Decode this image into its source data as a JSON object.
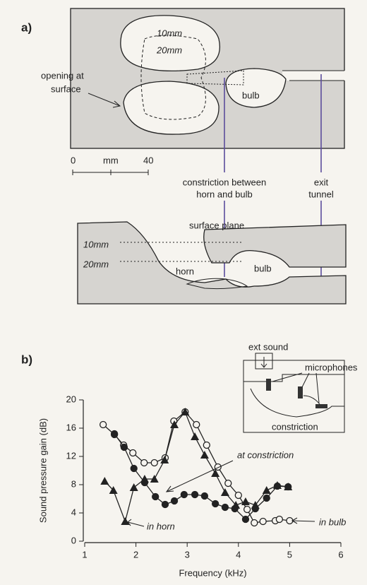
{
  "panel_a": {
    "label": "a)",
    "top_view": {
      "depth_10": "10mm",
      "depth_20": "20mm",
      "opening": [
        "opening at",
        "surface"
      ],
      "bulb": "bulb"
    },
    "scale_bar": {
      "start": "0",
      "unit": "mm",
      "end": "40"
    },
    "constriction": [
      "constriction between",
      "horn and bulb"
    ],
    "exit": [
      "exit",
      "tunnel"
    ],
    "section": {
      "surface_plane": "surface plane",
      "depth_10": "10mm",
      "depth_20": "20mm",
      "horn": "horn",
      "bulb": "bulb"
    }
  },
  "panel_b": {
    "label": "b)",
    "inset": {
      "ext_sound": "ext sound",
      "microphones": "microphones",
      "constriction": "constriction"
    }
  },
  "chart_data": {
    "type": "line",
    "x_label": "Frequency (kHz)",
    "y_label": "Sound pressure gain (dB)",
    "xlim": [
      1,
      6
    ],
    "xticks": [
      1,
      2,
      3,
      4,
      5,
      6
    ],
    "ylim": [
      0,
      20
    ],
    "yticks": [
      0,
      4,
      8,
      12,
      16,
      20
    ],
    "grid": false,
    "series": [
      {
        "name": "in bulb",
        "color": "#222222",
        "marker": "open-circle",
        "x": [
          1.36,
          1.58,
          1.76,
          1.94,
          2.16,
          2.36,
          2.57,
          2.74,
          2.96,
          3.18,
          3.38,
          3.6,
          3.8,
          4.0,
          4.17,
          4.31,
          4.48,
          4.72,
          4.8,
          5.0
        ],
        "values": [
          16.5,
          15.1,
          13.6,
          12.5,
          11.1,
          11.1,
          11.8,
          17,
          18.3,
          16.5,
          13.6,
          10.5,
          8.2,
          6.5,
          4.5,
          2.6,
          2.8,
          2.9,
          3.1,
          2.9
        ]
      },
      {
        "name": "at constriction",
        "color": "#222222",
        "marker": "filled-circle",
        "x": [
          1.58,
          1.77,
          1.96,
          2.17,
          2.38,
          2.57,
          2.75,
          2.94,
          3.15,
          3.34,
          3.55,
          3.74,
          3.93,
          4.14,
          4.33,
          4.55,
          4.76,
          4.97
        ],
        "values": [
          15.2,
          13.3,
          10.3,
          8.3,
          6.3,
          5.2,
          5.7,
          6.6,
          6.6,
          6.4,
          5.3,
          4.8,
          4.6,
          3.1,
          4.6,
          6.1,
          7.8,
          7.7
        ]
      },
      {
        "name": "in horn",
        "color": "#222222",
        "marker": "triangle",
        "x": [
          1.39,
          1.56,
          1.79,
          1.96,
          2.17,
          2.36,
          2.56,
          2.75,
          2.96,
          3.15,
          3.34,
          3.55,
          3.74,
          3.95,
          4.14,
          4.33,
          4.55,
          4.76,
          4.97
        ],
        "values": [
          8.5,
          7.2,
          2.8,
          7.6,
          8.8,
          8.8,
          11.5,
          16.5,
          18.3,
          14.8,
          12.2,
          9.6,
          6.9,
          5.1,
          5.6,
          5.1,
          7.2,
          7.9,
          7.7
        ]
      }
    ]
  }
}
